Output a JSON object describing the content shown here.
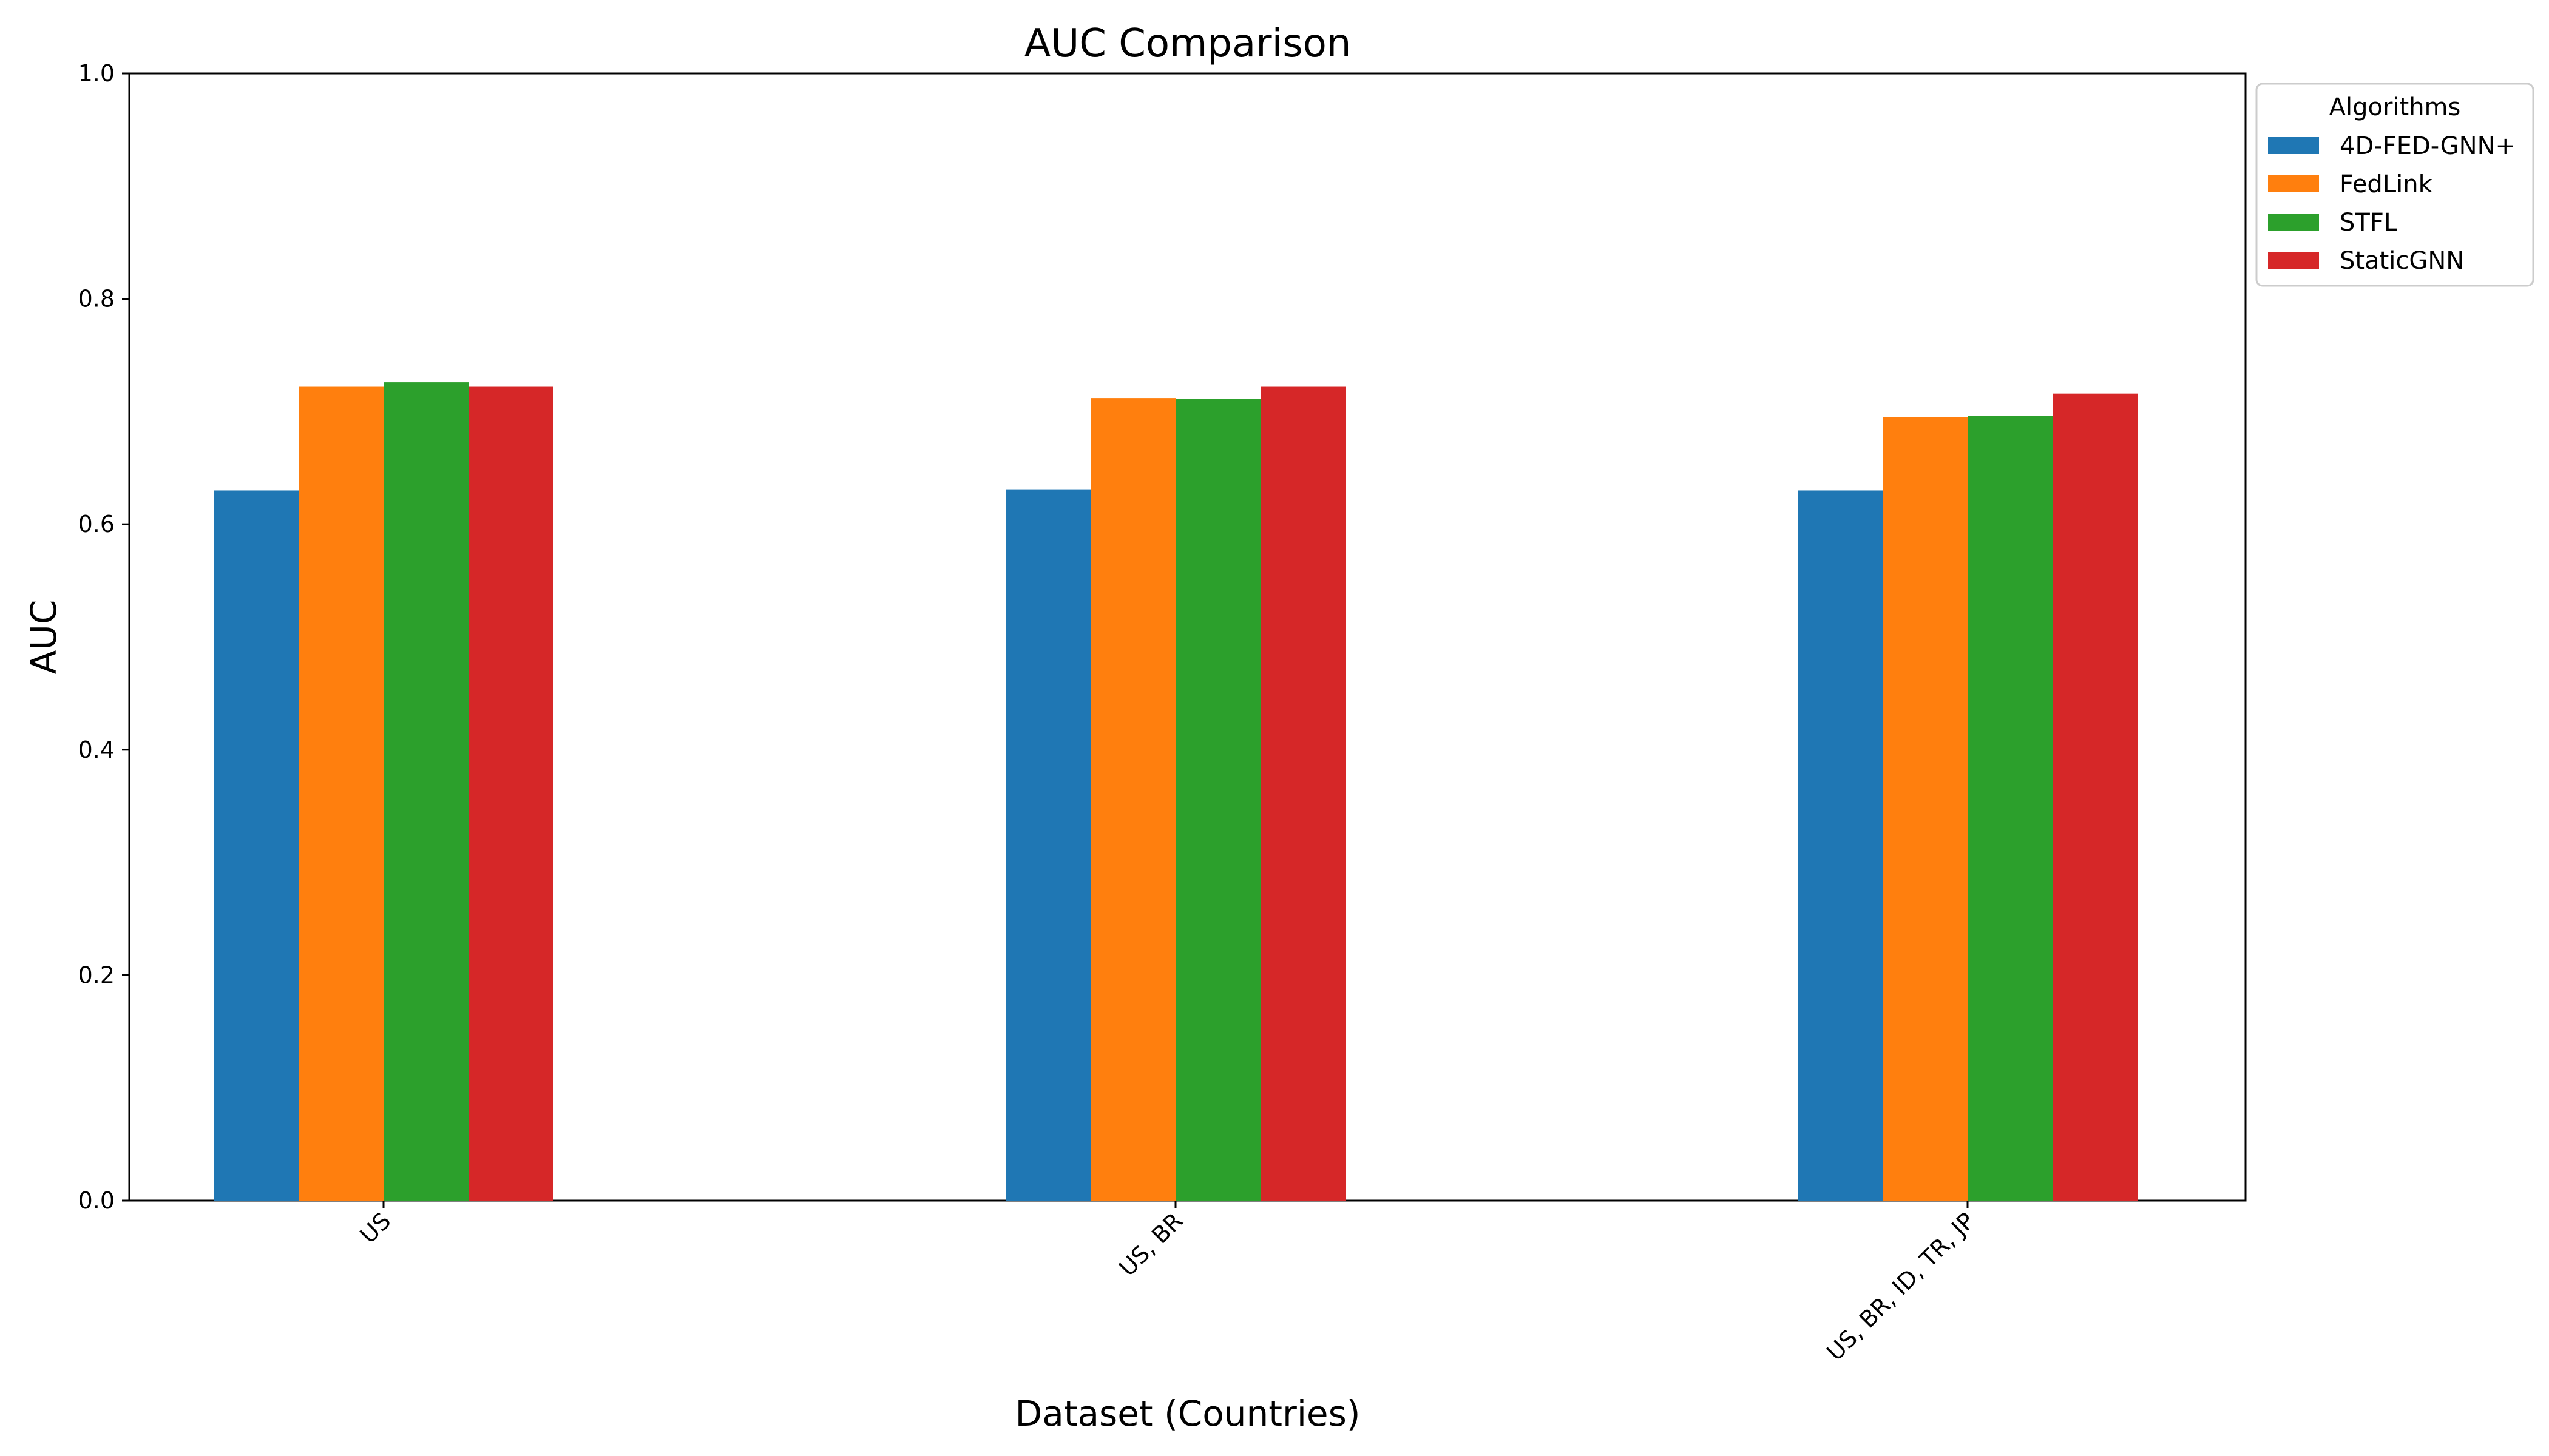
{
  "chart_data": {
    "type": "bar",
    "title": "AUC Comparison",
    "xlabel": "Dataset (Countries)",
    "ylabel": "AUC",
    "categories": [
      "US",
      "US, BR",
      "US, BR, ID, TR, JP"
    ],
    "ylim": [
      0.0,
      1.0
    ],
    "yticks": [
      "0.0",
      "0.2",
      "0.4",
      "0.6",
      "0.8",
      "1.0"
    ],
    "grid": false,
    "legend": {
      "title": "Algorithms",
      "placement": "outside-top-right"
    },
    "series": [
      {
        "name": "4D-FED-GNN+",
        "color": "#1f77b4",
        "values": [
          0.63,
          0.631,
          0.63
        ]
      },
      {
        "name": "FedLink",
        "color": "#ff7f0e",
        "values": [
          0.722,
          0.712,
          0.695
        ]
      },
      {
        "name": "STFL",
        "color": "#2ca02c",
        "values": [
          0.726,
          0.711,
          0.696
        ]
      },
      {
        "name": "StaticGNN",
        "color": "#d62728",
        "values": [
          0.722,
          0.722,
          0.716
        ]
      }
    ]
  }
}
